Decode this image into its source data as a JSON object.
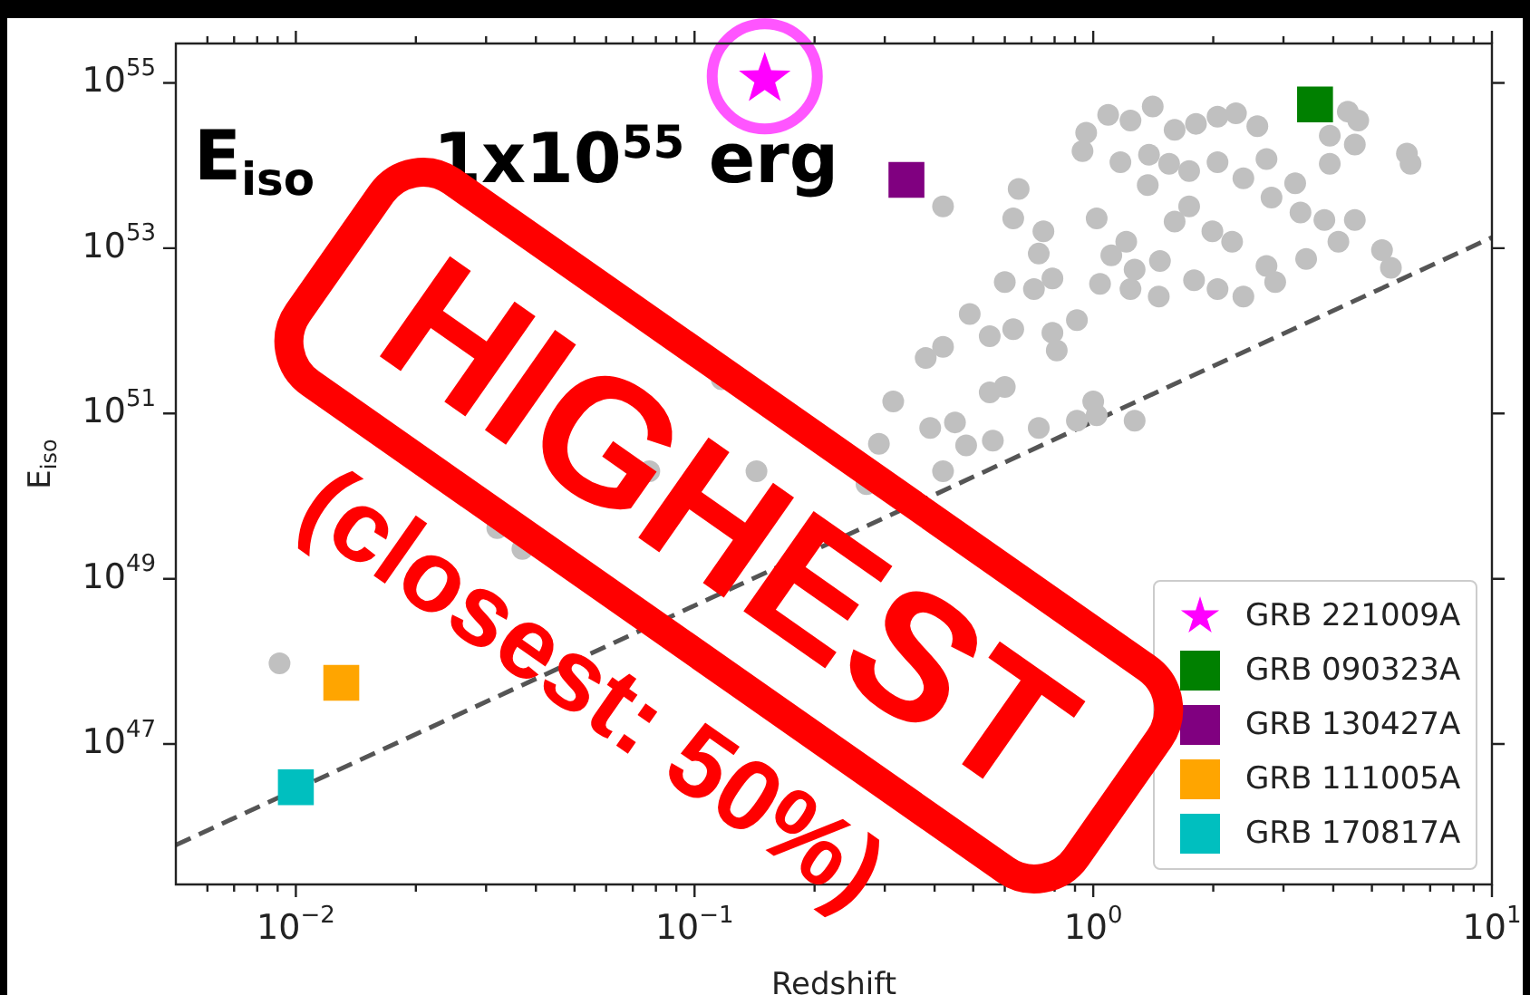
{
  "chart_data": {
    "type": "scatter",
    "xlabel": "Redshift",
    "ylabel": "E$_{iso}$",
    "log": "xy",
    "grid": false,
    "legend": "bottom right",
    "xlim": [
      0.005,
      10
    ],
    "ylim": [
      2e+45,
      3e+55
    ],
    "xticks": [
      {
        "value": 0.006,
        "label": null
      },
      {
        "value": 0.007,
        "label": null
      },
      {
        "value": 0.008,
        "label": null
      },
      {
        "value": 0.009,
        "label": null
      },
      {
        "value": 0.01,
        "label": "10$^{−2}$"
      },
      {
        "value": 0.02,
        "label": null
      },
      {
        "value": 0.03,
        "label": null
      },
      {
        "value": 0.04,
        "label": null
      },
      {
        "value": 0.05,
        "label": null
      },
      {
        "value": 0.06,
        "label": null
      },
      {
        "value": 0.07,
        "label": null
      },
      {
        "value": 0.08,
        "label": null
      },
      {
        "value": 0.09,
        "label": null
      },
      {
        "value": 0.1,
        "label": "10$^{−1}$"
      },
      {
        "value": 0.2,
        "label": null
      },
      {
        "value": 0.3,
        "label": null
      },
      {
        "value": 0.4,
        "label": null
      },
      {
        "value": 0.5,
        "label": null
      },
      {
        "value": 0.6,
        "label": null
      },
      {
        "value": 0.7,
        "label": null
      },
      {
        "value": 0.8,
        "label": null
      },
      {
        "value": 0.9,
        "label": null
      },
      {
        "value": 1,
        "label": "10$^{0}$"
      },
      {
        "value": 2,
        "label": null
      },
      {
        "value": 3,
        "label": null
      },
      {
        "value": 4,
        "label": null
      },
      {
        "value": 5,
        "label": null
      },
      {
        "value": 6,
        "label": null
      },
      {
        "value": 7,
        "label": null
      },
      {
        "value": 8,
        "label": null
      },
      {
        "value": 9,
        "label": null
      },
      {
        "value": 10,
        "label": "10$^{1}$"
      }
    ],
    "yticks": [
      {
        "value": 1e+47,
        "label": "10$^{47}$"
      },
      {
        "value": 1e+49,
        "label": "10$^{49}$"
      },
      {
        "value": 1e+51,
        "label": "10$^{51}$"
      },
      {
        "value": 1e+53,
        "label": "10$^{53}$"
      },
      {
        "value": 1e+55,
        "label": "10$^{55}$"
      }
    ],
    "annotations": [
      "E$_{iso}$",
      "1x10$^{55}$ erg",
      "HIGHEST",
      "(closest: 50%)"
    ],
    "series": [
      {
        "color": "#c0c0c0",
        "marker": "circle",
        "x": [
          1.41,
          1.09,
          1.24,
          0.96,
          0.94,
          1.6,
          1.81,
          2.05,
          2.28,
          2.58,
          4.35,
          4.62,
          3.92,
          4.53,
          6.12,
          6.25,
          1.17,
          1.38,
          1.55,
          1.74,
          1.37,
          2.05,
          2.38,
          2.72,
          3.21,
          3.92,
          2.8,
          3.31,
          3.8,
          4.53,
          1.6,
          1.74,
          1.99,
          2.23,
          1.21,
          1.11,
          1.27,
          1.47,
          1.79,
          2.05,
          2.38,
          2.72,
          2.86,
          3.42,
          4.12,
          5.3,
          5.58,
          1.24,
          1.46,
          1.04,
          1.02,
          0.65,
          0.63,
          0.75,
          0.42,
          0.73,
          0.6,
          0.71,
          0.79,
          0.49,
          0.91,
          0.79,
          0.81,
          0.63,
          0.55,
          0.42,
          0.38,
          0.117,
          0.6,
          0.55,
          0.315,
          1.0,
          0.91,
          1.02,
          1.27,
          0.39,
          0.45,
          0.73,
          0.56,
          0.48,
          0.29,
          0.27,
          0.42,
          0.143,
          0.077,
          0.0091,
          0.032,
          0.037
        ],
        "values": [
          5.2e+54,
          4.1e+54,
          3.5e+54,
          2.5e+54,
          1.5e+54,
          2.7e+54,
          3.2e+54,
          3.9e+54,
          4.3e+54,
          3e+54,
          4.5e+54,
          3.5e+54,
          2.3e+54,
          1.8e+54,
          1.4e+54,
          1.05e+54,
          1.1e+54,
          1.35e+54,
          1.05e+54,
          8.6e+53,
          5.8e+53,
          1.1e+54,
          7e+53,
          1.2e+54,
          6.1e+53,
          1.05e+54,
          4.1e+53,
          2.7e+53,
          2.2e+53,
          2.2e+53,
          2.1e+53,
          3.2e+53,
          1.6e+53,
          1.2e+53,
          1.2e+53,
          8.2e+52,
          5.5e+52,
          7e+52,
          4.1e+52,
          3.2e+52,
          2.6e+52,
          6.1e+52,
          3.9e+52,
          7.4e+52,
          1.2e+53,
          9.5e+52,
          5.8e+52,
          3.2e+52,
          2.6e+52,
          3.7e+52,
          2.3e+53,
          5.2e+53,
          2.3e+53,
          1.6e+53,
          3.2e+53,
          8.6e+52,
          3.9e+52,
          3.2e+52,
          4.3e+52,
          1.6e+52,
          1.35e+52,
          9.5e+51,
          5.8e+51,
          1.05e+52,
          8.6e+51,
          6.4e+51,
          4.7e+51,
          2.6e+51,
          2.1e+51,
          1.8e+51,
          1.4e+51,
          1.4e+51,
          8.2e+50,
          9.5e+50,
          8.2e+50,
          6.7e+50,
          7.8e+50,
          6.7e+50,
          4.7e+50,
          4.1e+50,
          4.3e+50,
          1.4e+50,
          2e+50,
          2e+50,
          2e+50,
          9.5e+47,
          4.1e+49,
          2.3e+49
        ]
      },
      {
        "type": "line",
        "color": "#555555",
        "line_style": "dashed",
        "marker": "none",
        "x": [
          0.005,
          10
        ],
        "values": [
          6e+45,
          1.35e+53
        ]
      },
      {
        "name": "GRB 221009A",
        "color": "#ff00ff",
        "marker": "star",
        "x": [
          0.15
        ],
        "values": [
          1.2e+55
        ]
      },
      {
        "name": "GRB 090323A",
        "color": "#008000",
        "marker": "square",
        "x": [
          3.6
        ],
        "values": [
          5.5e+54
        ]
      },
      {
        "name": "GRB 130427A",
        "color": "#800080",
        "marker": "square",
        "x": [
          0.34
        ],
        "values": [
          6.7e+53
        ]
      },
      {
        "name": "GRB 111005A",
        "color": "#ffa500",
        "marker": "square",
        "x": [
          0.013
        ],
        "values": [
          5.5e+47
        ]
      },
      {
        "name": "GRB 170817A",
        "color": "#00bfbf",
        "marker": "square",
        "x": [
          0.01
        ],
        "values": [
          3e+46
        ]
      }
    ]
  }
}
